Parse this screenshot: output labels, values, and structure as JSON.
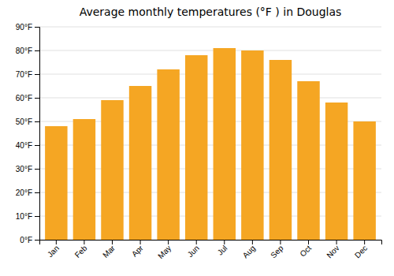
{
  "chart_data": {
    "type": "bar",
    "title": "Average monthly temperatures (°F ) in Douglas",
    "categories": [
      "Jan",
      "Feb",
      "Mar",
      "Apr",
      "May",
      "Jun",
      "Jul",
      "Aug",
      "Sep",
      "Oct",
      "Nov",
      "Dec"
    ],
    "values": [
      48,
      51,
      59,
      65,
      72,
      78,
      81,
      80,
      76,
      67,
      58,
      50
    ],
    "color": "#F5A623",
    "ylim": [
      0,
      90
    ],
    "yticks": [
      {
        "value": 0,
        "label": "0°F"
      },
      {
        "value": 10,
        "label": "10°F"
      },
      {
        "value": 20,
        "label": "20°F"
      },
      {
        "value": 30,
        "label": "30°F"
      },
      {
        "value": 40,
        "label": "40°F"
      },
      {
        "value": 50,
        "label": "50°F"
      },
      {
        "value": 60,
        "label": "60°F"
      },
      {
        "value": 70,
        "label": "70°F"
      },
      {
        "value": 80,
        "label": "80°F"
      },
      {
        "value": 90,
        "label": "90°F"
      }
    ],
    "grid": true
  }
}
